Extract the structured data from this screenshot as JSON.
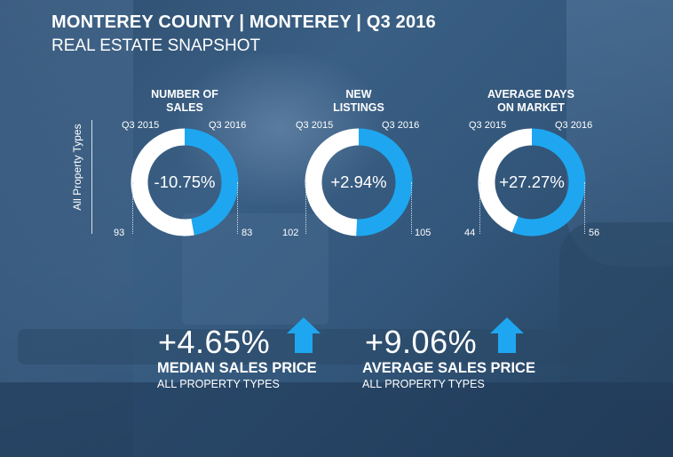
{
  "header": {
    "title": "MONTEREY COUNTY | MONTEREY | Q3 2016",
    "subtitle": "REAL ESTATE SNAPSHOT"
  },
  "side_label": "All Property Types",
  "colors": {
    "accent": "#1ea7f0",
    "ring_base": "#ffffff"
  },
  "chart_data": [
    {
      "type": "pie",
      "title": "NUMBER OF SALES",
      "title_lines": [
        "NUMBER OF",
        "SALES"
      ],
      "labels": [
        "Q3 2015",
        "Q3 2016"
      ],
      "values": [
        93,
        83
      ],
      "change_label": "-10.75%"
    },
    {
      "type": "pie",
      "title": "NEW LISTINGS",
      "title_lines": [
        "NEW",
        "LISTINGS"
      ],
      "labels": [
        "Q3 2015",
        "Q3 2016"
      ],
      "values": [
        102,
        105
      ],
      "change_label": "+2.94%"
    },
    {
      "type": "pie",
      "title": "AVERAGE DAYS ON MARKET",
      "title_lines": [
        "AVERAGE DAYS",
        "ON MARKET"
      ],
      "labels": [
        "Q3 2015",
        "Q3 2016"
      ],
      "values": [
        44,
        56
      ],
      "change_label": "+27.27%"
    }
  ],
  "kpis": [
    {
      "change": "+4.65%",
      "label": "MEDIAN SALES PRICE",
      "sub": "ALL PROPERTY TYPES",
      "arrow_icon": "up-arrow-icon"
    },
    {
      "change": "+9.06%",
      "label": "AVERAGE SALES PRICE",
      "sub": "ALL PROPERTY TYPES",
      "arrow_icon": "up-arrow-icon"
    }
  ]
}
